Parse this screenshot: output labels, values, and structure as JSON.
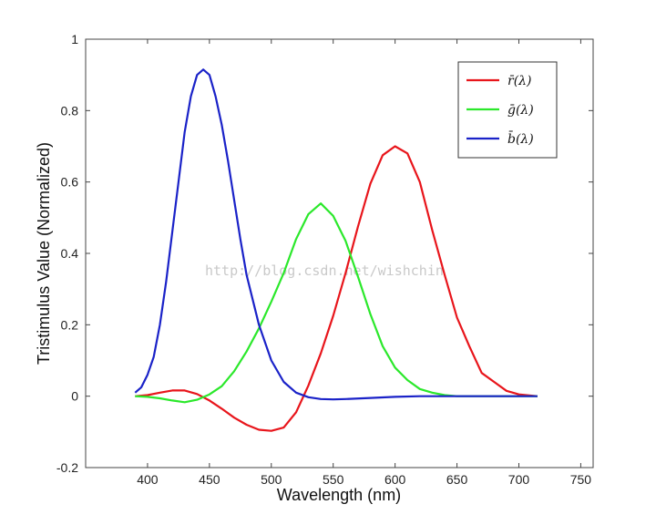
{
  "chart_data": {
    "type": "line",
    "xlabel": "Wavelength (nm)",
    "ylabel": "Tristimulus Value (Normalized)",
    "xlim": [
      350,
      760
    ],
    "ylim": [
      -0.2,
      1.0
    ],
    "xticks": [
      400,
      450,
      500,
      550,
      600,
      650,
      700,
      750
    ],
    "yticks": [
      -0.2,
      0,
      0.2,
      0.4,
      0.6,
      0.8,
      1
    ],
    "ytick_labels": [
      "-0.2",
      "0",
      "0.2",
      "0.4",
      "0.6",
      "0.8",
      "1"
    ],
    "grid": false,
    "legend_position": "top-right",
    "watermark": "http://blog.csdn.net/wishchin",
    "series": [
      {
        "name": "r̄(λ)",
        "color": "#e8151b",
        "x": [
          390,
          400,
          410,
          420,
          430,
          440,
          450,
          460,
          470,
          480,
          490,
          500,
          510,
          520,
          530,
          540,
          550,
          560,
          570,
          580,
          590,
          600,
          610,
          620,
          630,
          640,
          650,
          660,
          670,
          680,
          690,
          700,
          715
        ],
        "y": [
          0.0,
          0.003,
          0.01,
          0.016,
          0.016,
          0.006,
          -0.012,
          -0.035,
          -0.06,
          -0.08,
          -0.094,
          -0.097,
          -0.088,
          -0.045,
          0.03,
          0.12,
          0.225,
          0.345,
          0.475,
          0.595,
          0.675,
          0.7,
          0.68,
          0.6,
          0.465,
          0.34,
          0.22,
          0.14,
          0.065,
          0.04,
          0.015,
          0.005,
          0.0
        ]
      },
      {
        "name": "ḡ(λ)",
        "color": "#2be82b",
        "x": [
          390,
          400,
          410,
          420,
          430,
          440,
          450,
          460,
          470,
          480,
          490,
          500,
          510,
          520,
          530,
          540,
          550,
          560,
          570,
          580,
          590,
          600,
          610,
          620,
          630,
          640,
          650,
          660,
          670,
          680,
          690,
          700,
          715
        ],
        "y": [
          0.0,
          -0.002,
          -0.006,
          -0.012,
          -0.017,
          -0.01,
          0.005,
          0.028,
          0.07,
          0.125,
          0.19,
          0.265,
          0.345,
          0.44,
          0.51,
          0.54,
          0.505,
          0.435,
          0.335,
          0.23,
          0.14,
          0.08,
          0.045,
          0.02,
          0.01,
          0.003,
          0.0,
          0.0,
          0.0,
          0.0,
          0.0,
          0.0,
          0.0
        ]
      },
      {
        "name": "b̄(λ)",
        "color": "#1a22c8",
        "x": [
          390,
          395,
          400,
          405,
          410,
          415,
          420,
          425,
          430,
          435,
          440,
          445,
          450,
          455,
          460,
          465,
          470,
          475,
          480,
          490,
          500,
          510,
          520,
          530,
          540,
          550,
          560,
          580,
          600,
          620,
          640,
          660,
          680,
          700,
          715
        ],
        "y": [
          0.01,
          0.025,
          0.06,
          0.11,
          0.2,
          0.32,
          0.46,
          0.6,
          0.74,
          0.84,
          0.9,
          0.915,
          0.9,
          0.84,
          0.76,
          0.66,
          0.55,
          0.44,
          0.34,
          0.2,
          0.1,
          0.04,
          0.01,
          -0.003,
          -0.008,
          -0.009,
          -0.008,
          -0.005,
          -0.002,
          0.0,
          0.0,
          0.0,
          0.0,
          0.0,
          0.0
        ]
      }
    ]
  }
}
